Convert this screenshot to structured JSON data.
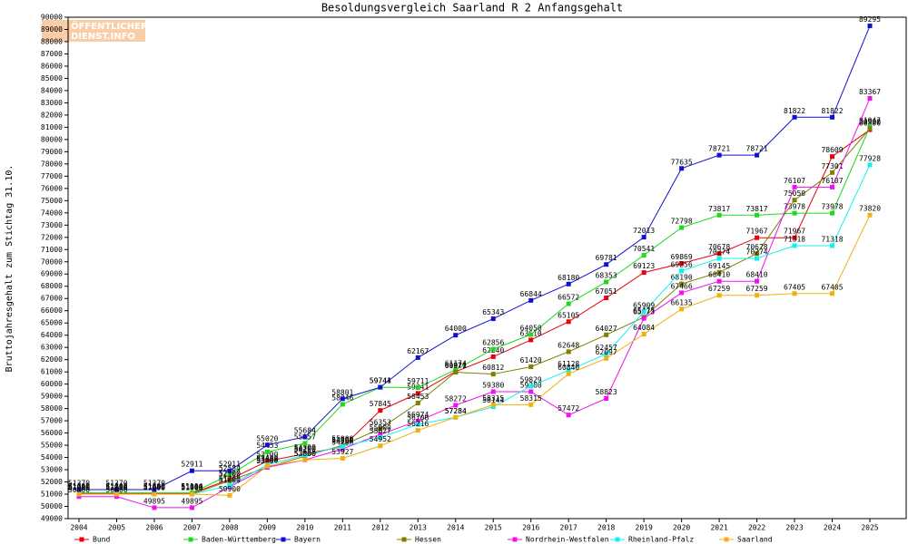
{
  "logo": {
    "line1": "ÖFFENTLICHER",
    "line2": "DIENST.INFO"
  },
  "chart_data": {
    "type": "line",
    "title": "Besoldungsvergleich Saarland R 2 Anfangsgehalt",
    "y_label": "Bruttojahresgehalt zum Stichtag 31.10.",
    "categories": [
      "2004",
      "2005",
      "2006",
      "2007",
      "2008",
      "2009",
      "2010",
      "2011",
      "2012",
      "2013",
      "2014",
      "2015",
      "2016",
      "2017",
      "2018",
      "2019",
      "2020",
      "2021",
      "2022",
      "2023",
      "2024",
      "2025"
    ],
    "ylim": [
      49000,
      90000
    ],
    "yticks": [
      49000,
      50000,
      51000,
      52000,
      53000,
      54000,
      55000,
      56000,
      57000,
      58000,
      59000,
      60000,
      61000,
      62000,
      63000,
      64000,
      65000,
      66000,
      67000,
      68000,
      69000,
      70000,
      71000,
      72000,
      73000,
      74000,
      75000,
      76000,
      77000,
      78000,
      79000,
      80000,
      81000,
      82000,
      83000,
      84000,
      85000,
      86000,
      87000,
      88000,
      89000,
      90000
    ],
    "series": [
      {
        "name": "Bund",
        "color": "#e8000b",
        "values": [
          51080,
          51080,
          51080,
          51080,
          52200,
          53700,
          54300,
          54860,
          57845,
          59241,
          61020,
          62240,
          63610,
          65105,
          67051,
          69123,
          69869,
          70678,
          71967,
          71967,
          78609,
          80800
        ]
      },
      {
        "name": "Baden-Württemberg",
        "color": "#1fd81f",
        "values": [
          51100,
          51100,
          51100,
          51104,
          52584,
          54453,
          55157,
          58346,
          59741,
          59711,
          61174,
          62856,
          64050,
          66572,
          68353,
          70541,
          72798,
          73817,
          73817,
          73978,
          73978,
          81047
        ]
      },
      {
        "name": "Bayern",
        "color": "#1010d0",
        "values": [
          51370,
          51370,
          51370,
          52911,
          52911,
          55020,
          55684,
          58801,
          59744,
          62167,
          64000,
          65343,
          66844,
          68180,
          69781,
          72013,
          77635,
          78721,
          78721,
          81822,
          81822,
          89295
        ]
      },
      {
        "name": "Hessen",
        "color": "#7f7f00",
        "values": [
          51000,
          51000,
          51000,
          51000,
          52100,
          53200,
          54100,
          55000,
          56353,
          58453,
          60971,
          60812,
          61420,
          62648,
          64027,
          65475,
          68190,
          69145,
          70678,
          75050,
          77301,
          80900
        ]
      },
      {
        "name": "Nordrhein-Westfalen",
        "color": "#f010f0",
        "values": [
          50800,
          50800,
          49895,
          49895,
          51600,
          53200,
          53800,
          54700,
          55900,
          56974,
          58272,
          59380,
          59380,
          57472,
          58823,
          65373,
          67466,
          68410,
          68410,
          76107,
          76107,
          83367
        ]
      },
      {
        "name": "Rheinland-Pfalz",
        "color": "#10f0f0",
        "values": [
          51000,
          51000,
          51000,
          51000,
          51700,
          53400,
          54200,
          54900,
          55627,
          56706,
          57284,
          58144,
          59829,
          61128,
          62457,
          65909,
          69256,
          70274,
          70274,
          71318,
          71318,
          77928
        ]
      },
      {
        "name": "Saarland",
        "color": "#f0b010",
        "values": [
          51000,
          51000,
          51000,
          51000,
          50900,
          53300,
          53800,
          53927,
          54952,
          56216,
          57284,
          58315,
          58315,
          60840,
          62097,
          64084,
          66135,
          67259,
          67259,
          67405,
          67405,
          73820
        ]
      }
    ]
  }
}
